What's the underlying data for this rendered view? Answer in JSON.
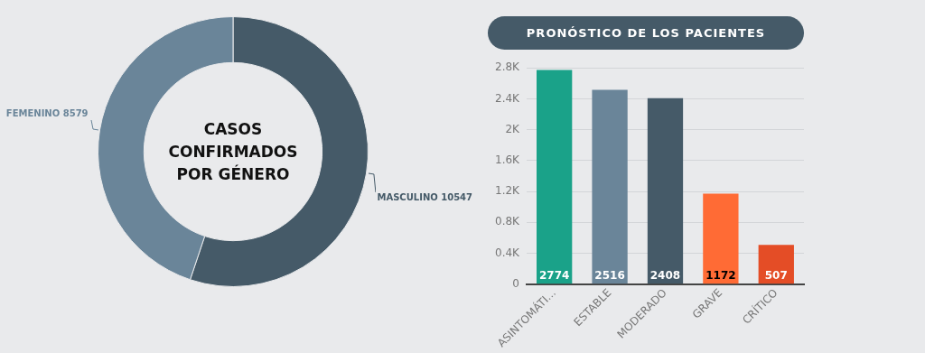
{
  "chart_data": [
    {
      "type": "donut",
      "title": "CASOS CONFIRMADOS POR GÉNERO",
      "categories": [
        "MASCULINO",
        "FEMENINO"
      ],
      "values": [
        10547,
        8579
      ],
      "colors": [
        "#455a68",
        "#6a8599"
      ],
      "data_labels": true,
      "legend": false
    },
    {
      "type": "bar",
      "title": "PRONÓSTICO DE LOS PACIENTES",
      "categories": [
        "ASINTOMÁTI...",
        "ESTABLE",
        "MODERADO",
        "GRAVE",
        "CRÍTICO"
      ],
      "values": [
        2774,
        2516,
        2408,
        1172,
        507
      ],
      "colors": [
        "#1aa289",
        "#6a8599",
        "#455a68",
        "#ff6b35",
        "#e44d26"
      ],
      "ylim": [
        0,
        2800
      ],
      "yticks": [
        0,
        {
          "value": 400,
          "label": "0.4K"
        },
        {
          "value": 800,
          "label": "0.8K"
        },
        {
          "value": 1200,
          "label": "1.2K"
        },
        {
          "value": 1600,
          "label": "1.6K"
        },
        {
          "value": 2000,
          "label": "2K"
        },
        {
          "value": 2400,
          "label": "2.4K"
        },
        {
          "value": 2800,
          "label": "2.8K"
        }
      ],
      "grid": "y",
      "data_labels": true,
      "legend": false
    }
  ]
}
